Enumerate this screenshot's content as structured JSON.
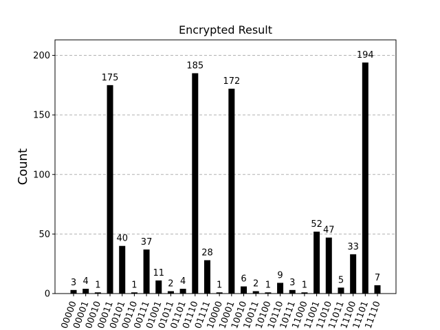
{
  "chart_data": {
    "type": "bar",
    "title": "Encrypted Result",
    "xlabel": "",
    "ylabel": "Count",
    "ylim": [
      0,
      213
    ],
    "yticks": [
      0,
      50,
      100,
      150,
      200
    ],
    "grid": "horizontal-dashed",
    "categories": [
      "00000",
      "00001",
      "00010",
      "00011",
      "00101",
      "00110",
      "00111",
      "01001",
      "01011",
      "01101",
      "01110",
      "01111",
      "10000",
      "10001",
      "10010",
      "10011",
      "10100",
      "10110",
      "10111",
      "11000",
      "11001",
      "11010",
      "11011",
      "11100",
      "11101",
      "11110"
    ],
    "values": [
      3,
      4,
      1,
      175,
      40,
      1,
      37,
      11,
      2,
      4,
      185,
      28,
      1,
      172,
      6,
      2,
      1,
      9,
      3,
      1,
      52,
      47,
      5,
      33,
      194,
      7
    ],
    "bar_color": "#000000"
  }
}
